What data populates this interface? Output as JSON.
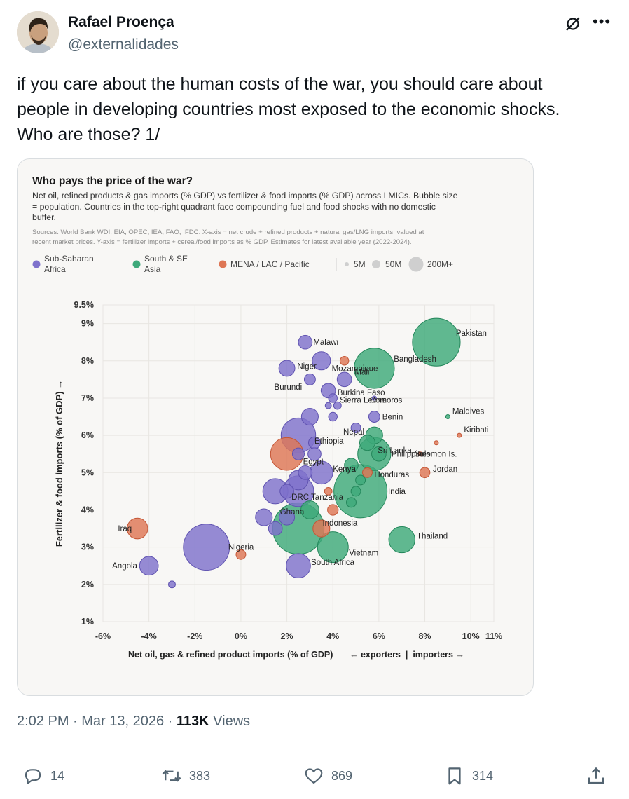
{
  "user": {
    "name": "Rafael Proença",
    "handle": "@externalidades"
  },
  "tweet": {
    "lines": [
      "if you care about the human costs of the war, you should care about",
      "people in developing countries most exposed to the economic shocks.",
      "Who are those? 1/"
    ]
  },
  "meta": {
    "time": "2:02 PM",
    "sep1": " · ",
    "date": "Mar 13, 2026",
    "sep2": " · ",
    "views_count": "113K",
    "views_label": " Views"
  },
  "actions": {
    "replies": "14",
    "reposts": "383",
    "likes": "869",
    "bookmarks": "314"
  },
  "icons": [
    "avatar",
    "grok-icon",
    "more-icon",
    "reply-icon",
    "repost-icon",
    "like-icon",
    "bookmark-icon",
    "share-icon"
  ],
  "colors": {
    "purple": "#7f72cc",
    "green": "#3ea97a",
    "orange": "#de7655",
    "text": "#0f1419",
    "muted": "#536471"
  },
  "chart_data": {
    "type": "scatter",
    "title": "Who pays the price of the war?",
    "subtitle": [
      "Net oil, refined products & gas imports (% GDP) vs fertilizer & food imports (% GDP) across LMICs. Bubble size",
      "= population. Countries in the top-right quadrant face compounding fuel and food shocks with no domestic",
      "buffer."
    ],
    "sources": [
      "Sources: World Bank WDI, EIA, OPEC, IEA, FAO, IFDC. X-axis = net crude + refined products + natural gas/LNG imports, valued at",
      "recent market prices. Y-axis = fertilizer imports + cereal/food imports as % GDP. Estimates for latest available year (2022-2024)."
    ],
    "legend": [
      {
        "label_lines": [
          "Sub-Saharan",
          "Africa"
        ],
        "color": "purple"
      },
      {
        "label_lines": [
          "South & SE",
          "Asia"
        ],
        "color": "green"
      },
      {
        "label_lines": [
          "MENA / LAC / Pacific"
        ],
        "color": "orange"
      }
    ],
    "size_legend": [
      "5M",
      "50M",
      "200M+"
    ],
    "xlabel": "Net oil, gas & refined product imports (% of GDP)",
    "xlabel_extra": "← exporters  |  importers →",
    "ylabel": "Fertilizer & food imports (% of GDP) →",
    "xlim": [
      -6,
      11
    ],
    "ylim": [
      1,
      9.5
    ],
    "xticks": [
      -6,
      -4,
      -2,
      0,
      2,
      4,
      6,
      8,
      10,
      11
    ],
    "xtick_labels": [
      "-6%",
      "-4%",
      "-2%",
      "0%",
      "2%",
      "4%",
      "6%",
      "8%",
      "10%",
      "11%"
    ],
    "yticks": [
      1,
      2,
      3,
      4,
      5,
      6,
      7,
      8,
      9,
      9.5
    ],
    "ytick_labels": [
      "1%",
      "2%",
      "3%",
      "4%",
      "5%",
      "6%",
      "7%",
      "8%",
      "9%",
      "9.5%"
    ],
    "points": [
      {
        "label": "Pakistan",
        "region": "green",
        "x": 8.5,
        "y": 8.5,
        "pop": 240
      },
      {
        "label": "Bangladesh",
        "region": "green",
        "x": 5.8,
        "y": 7.8,
        "pop": 170
      },
      {
        "label": "Malawi",
        "region": "purple",
        "x": 2.8,
        "y": 8.5,
        "pop": 20
      },
      {
        "label": "Niger",
        "region": "purple",
        "x": 2.0,
        "y": 7.8,
        "pop": 27
      },
      {
        "label": "Mozambique",
        "region": "orange",
        "x": 4.5,
        "y": 8.0,
        "pop": 8
      },
      {
        "label": "Mali",
        "region": "purple",
        "x": 4.5,
        "y": 7.5,
        "pop": 22
      },
      {
        "label": "",
        "region": "purple",
        "x": 3.5,
        "y": 8.0,
        "pop": 35
      },
      {
        "label": "Burundi",
        "region": "purple",
        "x": 3.0,
        "y": 7.5,
        "pop": 13
      },
      {
        "label": "Burkina Faso",
        "region": "purple",
        "x": 3.8,
        "y": 7.2,
        "pop": 22
      },
      {
        "label": "Sierra Leone",
        "region": "purple",
        "x": 4.0,
        "y": 7.0,
        "pop": 8
      },
      {
        "label": "",
        "region": "purple",
        "x": 3.8,
        "y": 6.8,
        "pop": 4
      },
      {
        "label": "",
        "region": "purple",
        "x": 4.2,
        "y": 6.8,
        "pop": 6
      },
      {
        "label": "Comoros",
        "region": "purple",
        "x": 5.8,
        "y": 7.0,
        "pop": 1
      },
      {
        "label": "",
        "region": "purple",
        "x": 3.0,
        "y": 6.5,
        "pop": 30
      },
      {
        "label": "",
        "region": "purple",
        "x": 4.0,
        "y": 6.5,
        "pop": 8
      },
      {
        "label": "Benin",
        "region": "purple",
        "x": 5.8,
        "y": 6.5,
        "pop": 13
      },
      {
        "label": "Maldives",
        "region": "green",
        "x": 9.0,
        "y": 6.5,
        "pop": 1
      },
      {
        "label": "Kiribati",
        "region": "orange",
        "x": 9.5,
        "y": 6.0,
        "pop": 1
      },
      {
        "label": "Nepal",
        "region": "purple",
        "x": 5.0,
        "y": 6.2,
        "pop": 10
      },
      {
        "label": "",
        "region": "green",
        "x": 5.8,
        "y": 6.0,
        "pop": 30
      },
      {
        "label": "Ethiopia",
        "region": "purple",
        "x": 2.5,
        "y": 6.0,
        "pop": 126
      },
      {
        "label": "",
        "region": "purple",
        "x": 3.2,
        "y": 5.8,
        "pop": 15
      },
      {
        "label": "",
        "region": "green",
        "x": 5.5,
        "y": 5.8,
        "pop": 25
      },
      {
        "label": "",
        "region": "orange",
        "x": 8.5,
        "y": 5.8,
        "pop": 1
      },
      {
        "label": "Sri Lanka",
        "region": "green",
        "x": 6.0,
        "y": 5.5,
        "pop": 22
      },
      {
        "label": "Philippines",
        "region": "green",
        "x": 5.8,
        "y": 5.5,
        "pop": 115
      },
      {
        "label": "Solomon Is.",
        "region": "orange",
        "x": 7.8,
        "y": 5.5,
        "pop": 1
      },
      {
        "label": "Egypt",
        "region": "orange",
        "x": 2.0,
        "y": 5.5,
        "pop": 112
      },
      {
        "label": "",
        "region": "purple",
        "x": 2.5,
        "y": 5.5,
        "pop": 15
      },
      {
        "label": "",
        "region": "purple",
        "x": 3.2,
        "y": 5.5,
        "pop": 18
      },
      {
        "label": "Kenya",
        "region": "purple",
        "x": 3.5,
        "y": 5.0,
        "pop": 55
      },
      {
        "label": "",
        "region": "green",
        "x": 4.8,
        "y": 5.2,
        "pop": 20
      },
      {
        "label": "Honduras",
        "region": "orange",
        "x": 5.5,
        "y": 5.0,
        "pop": 10
      },
      {
        "label": "Jordan",
        "region": "orange",
        "x": 8.0,
        "y": 5.0,
        "pop": 11
      },
      {
        "label": "",
        "region": "green",
        "x": 5.2,
        "y": 4.8,
        "pop": 10
      },
      {
        "label": "",
        "region": "purple",
        "x": 2.8,
        "y": 5.0,
        "pop": 20
      },
      {
        "label": "",
        "region": "purple",
        "x": 2.5,
        "y": 4.8,
        "pop": 40
      },
      {
        "label": "India",
        "region": "green",
        "x": 5.2,
        "y": 4.5,
        "pop": 1420
      },
      {
        "label": "",
        "region": "green",
        "x": 5.0,
        "y": 4.5,
        "pop": 10
      },
      {
        "label": "DRC",
        "region": "purple",
        "x": 2.5,
        "y": 4.5,
        "pop": 100
      },
      {
        "label": "Tanzania",
        "region": "purple",
        "x": 1.5,
        "y": 4.5,
        "pop": 67
      },
      {
        "label": "",
        "region": "purple",
        "x": 2.0,
        "y": 4.5,
        "pop": 20
      },
      {
        "label": "",
        "region": "orange",
        "x": 3.8,
        "y": 4.5,
        "pop": 6
      },
      {
        "label": "",
        "region": "green",
        "x": 4.8,
        "y": 4.2,
        "pop": 10
      },
      {
        "label": "",
        "region": "orange",
        "x": 4.0,
        "y": 4.0,
        "pop": 12
      },
      {
        "label": "Ghana",
        "region": "green",
        "x": 3.0,
        "y": 4.0,
        "pop": 34
      },
      {
        "label": "",
        "region": "purple",
        "x": 1.0,
        "y": 3.8,
        "pop": 30
      },
      {
        "label": "",
        "region": "purple",
        "x": 2.0,
        "y": 3.8,
        "pop": 25
      },
      {
        "label": "",
        "region": "purple",
        "x": 1.5,
        "y": 3.5,
        "pop": 20
      },
      {
        "label": "Indonesia",
        "region": "green",
        "x": 2.5,
        "y": 3.5,
        "pop": 278
      },
      {
        "label": "",
        "region": "orange",
        "x": 3.5,
        "y": 3.5,
        "pop": 30
      },
      {
        "label": "Iraq",
        "region": "orange",
        "x": -4.5,
        "y": 3.5,
        "pop": 45
      },
      {
        "label": "Thailand",
        "region": "green",
        "x": 7.0,
        "y": 3.2,
        "pop": 72
      },
      {
        "label": "Vietnam",
        "region": "green",
        "x": 4.0,
        "y": 3.0,
        "pop": 100
      },
      {
        "label": "Nigeria",
        "region": "purple",
        "x": -1.5,
        "y": 3.0,
        "pop": 224
      },
      {
        "label": "",
        "region": "orange",
        "x": 0.0,
        "y": 2.8,
        "pop": 10
      },
      {
        "label": "South Africa",
        "region": "purple",
        "x": 2.5,
        "y": 2.5,
        "pop": 62
      },
      {
        "label": "Angola",
        "region": "purple",
        "x": -4.0,
        "y": 2.5,
        "pop": 37
      },
      {
        "label": "",
        "region": "purple",
        "x": -3.0,
        "y": 2.0,
        "pop": 5
      }
    ],
    "labels": [
      {
        "text": "Pakistan",
        "x": 9.35,
        "y": 8.75
      },
      {
        "text": "Bangladesh",
        "x": 6.65,
        "y": 8.05
      },
      {
        "text": "Malawi",
        "x": 3.15,
        "y": 8.5
      },
      {
        "text": "Niger",
        "x": 2.45,
        "y": 7.85
      },
      {
        "text": "Mozambique",
        "x": 3.95,
        "y": 7.8
      },
      {
        "text": "Mali",
        "x": 4.95,
        "y": 7.7
      },
      {
        "text": "Burundi",
        "x": 1.45,
        "y": 7.3
      },
      {
        "text": "Burkina Faso",
        "x": 4.2,
        "y": 7.15
      },
      {
        "text": "Sierra Leone",
        "x": 4.3,
        "y": 6.95
      },
      {
        "text": "Comoros",
        "x": 5.6,
        "y": 6.95
      },
      {
        "text": "Benin",
        "x": 6.15,
        "y": 6.5
      },
      {
        "text": "Maldives",
        "x": 9.2,
        "y": 6.65
      },
      {
        "text": "Kiribati",
        "x": 9.7,
        "y": 6.15
      },
      {
        "text": "Nepal",
        "x": 4.45,
        "y": 6.1
      },
      {
        "text": "Ethiopia",
        "x": 3.2,
        "y": 5.85
      },
      {
        "text": "Sri Lanka",
        "x": 5.95,
        "y": 5.6
      },
      {
        "text": "Philippines",
        "x": 6.55,
        "y": 5.5
      },
      {
        "text": "Solomon Is.",
        "x": 7.55,
        "y": 5.5
      },
      {
        "text": "Egypt",
        "x": 2.7,
        "y": 5.3
      },
      {
        "text": "Kenya",
        "x": 4.0,
        "y": 5.1
      },
      {
        "text": "Honduras",
        "x": 5.8,
        "y": 4.95
      },
      {
        "text": "Jordan",
        "x": 8.35,
        "y": 5.1
      },
      {
        "text": "India",
        "x": 6.4,
        "y": 4.5
      },
      {
        "text": "DRC",
        "x": 2.2,
        "y": 4.35
      },
      {
        "text": "Tanzania",
        "x": 3.05,
        "y": 4.35
      },
      {
        "text": "Ghana",
        "x": 1.7,
        "y": 3.95
      },
      {
        "text": "Indonesia",
        "x": 3.55,
        "y": 3.65
      },
      {
        "text": "Iraq",
        "x": -5.35,
        "y": 3.5
      },
      {
        "text": "Thailand",
        "x": 7.65,
        "y": 3.3
      },
      {
        "text": "Vietnam",
        "x": 4.7,
        "y": 2.85
      },
      {
        "text": "Nigeria",
        "x": -0.55,
        "y": 3.0
      },
      {
        "text": "South Africa",
        "x": 3.05,
        "y": 2.6
      },
      {
        "text": "Angola",
        "x": -5.6,
        "y": 2.5
      }
    ]
  }
}
